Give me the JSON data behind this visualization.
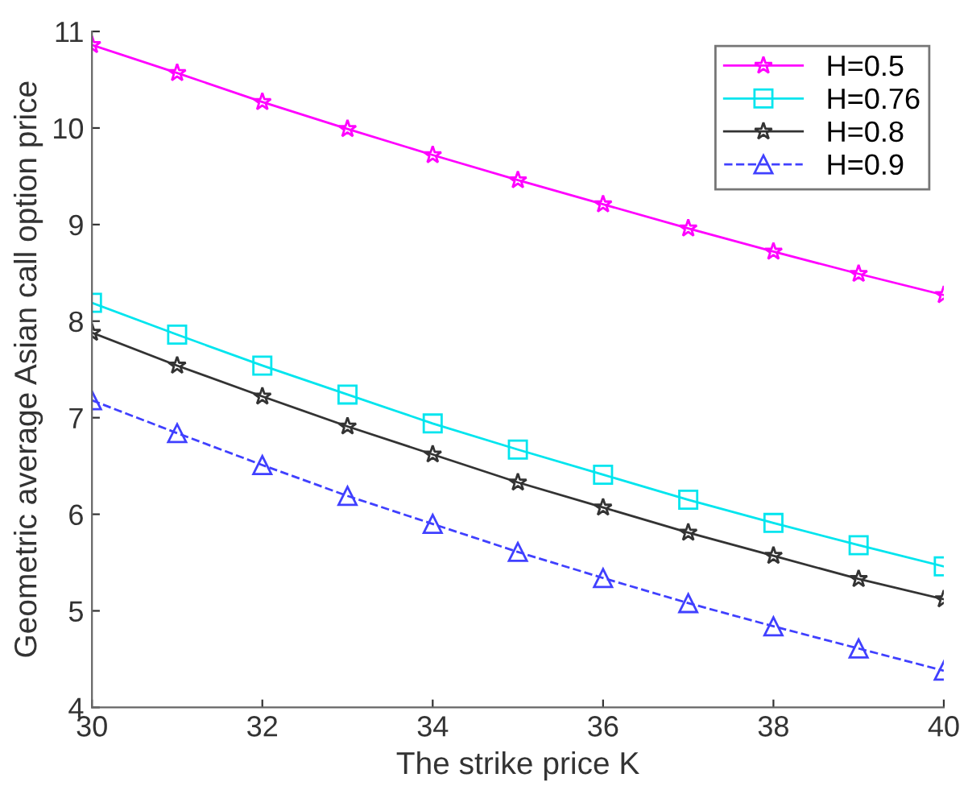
{
  "chart_data": {
    "type": "line",
    "xlabel": "The strike price K",
    "ylabel": "Geometric average Asian call option price",
    "x": [
      30,
      31,
      32,
      33,
      34,
      35,
      36,
      37,
      38,
      39,
      40
    ],
    "xlim": [
      30,
      40
    ],
    "xticks": [
      30,
      32,
      34,
      36,
      38,
      40
    ],
    "ylim": [
      4,
      11
    ],
    "yticks": [
      4,
      5,
      6,
      7,
      8,
      9,
      10,
      11
    ],
    "grid": false,
    "legend": "top right",
    "series": [
      {
        "name": "H=0.5",
        "color": "#ff00ff",
        "marker": "star",
        "line_style": "solid",
        "values": [
          10.86,
          10.57,
          10.27,
          9.99,
          9.72,
          9.46,
          9.21,
          8.96,
          8.72,
          8.49,
          8.27
        ]
      },
      {
        "name": "H=0.76",
        "color": "#00e5ee",
        "marker": "square",
        "line_style": "solid",
        "values": [
          8.19,
          7.86,
          7.54,
          7.24,
          6.94,
          6.67,
          6.41,
          6.15,
          5.91,
          5.68,
          5.46
        ]
      },
      {
        "name": "H=0.8",
        "color": "#333333",
        "marker": "star",
        "line_style": "solid",
        "values": [
          7.88,
          7.54,
          7.22,
          6.91,
          6.62,
          6.33,
          6.07,
          5.81,
          5.57,
          5.33,
          5.12
        ]
      },
      {
        "name": "H=0.9",
        "color": "#4040ff",
        "marker": "triangle",
        "line_style": "dashed",
        "values": [
          7.18,
          6.84,
          6.51,
          6.19,
          5.9,
          5.61,
          5.34,
          5.08,
          4.84,
          4.61,
          4.38
        ]
      }
    ]
  }
}
